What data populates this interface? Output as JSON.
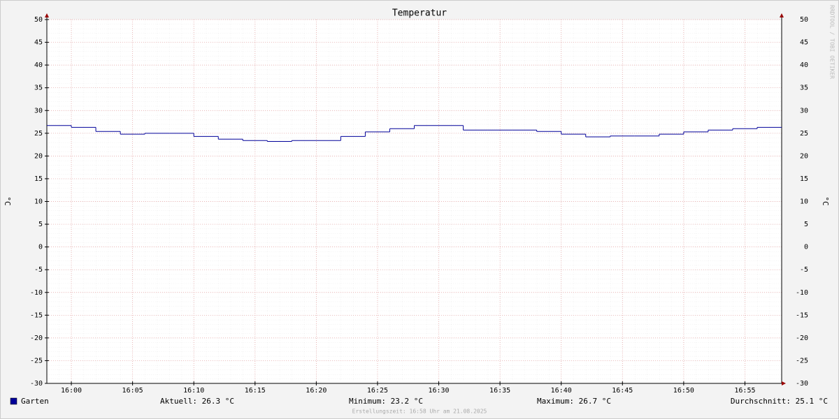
{
  "chart_data": {
    "type": "step",
    "title": "Temperatur",
    "y_label": "°C",
    "watermark": "RRDTOOL / TOBI OETIKER",
    "footer": "Erstellungszeit: 16:58 Uhr am 21.08.2025",
    "xlim": [
      "15:58",
      "16:58"
    ],
    "xticks": [
      "16:00",
      "16:05",
      "16:10",
      "16:15",
      "16:20",
      "16:25",
      "16:30",
      "16:35",
      "16:40",
      "16:45",
      "16:50",
      "16:55"
    ],
    "ylim": [
      -30,
      50
    ],
    "yticks": [
      -30,
      -25,
      -20,
      -15,
      -10,
      -5,
      0,
      5,
      10,
      15,
      20,
      25,
      30,
      35,
      40,
      45,
      50
    ],
    "grid": true,
    "x": [
      "15:58",
      "16:00",
      "16:02",
      "16:04",
      "16:06",
      "16:08",
      "16:10",
      "16:12",
      "16:14",
      "16:16",
      "16:18",
      "16:20",
      "16:22",
      "16:24",
      "16:26",
      "16:28",
      "16:30",
      "16:32",
      "16:34",
      "16:36",
      "16:38",
      "16:40",
      "16:42",
      "16:44",
      "16:46",
      "16:48",
      "16:50",
      "16:52",
      "16:54",
      "16:56"
    ],
    "series": [
      {
        "name": "Garten",
        "color": "#000099",
        "values": [
          26.7,
          26.3,
          25.4,
          24.8,
          25.0,
          25.0,
          24.3,
          23.7,
          23.4,
          23.2,
          23.4,
          23.4,
          24.3,
          25.3,
          26.0,
          26.7,
          26.7,
          25.7,
          25.7,
          25.7,
          25.4,
          24.8,
          24.2,
          24.4,
          24.4,
          24.8,
          25.3,
          25.7,
          26.0,
          26.3
        ]
      }
    ],
    "stats": [
      {
        "name": "Aktuell:",
        "value": 26.3,
        "value_label": "26.3 °C"
      },
      {
        "name": "Minimum:",
        "value": 23.2,
        "value_label": "23.2 °C"
      },
      {
        "name": "Maximum:",
        "value": 26.7,
        "value_label": "26.7 °C"
      },
      {
        "name": "Durchschnitt:",
        "value": 25.1,
        "value_label": "25.1 °C"
      }
    ]
  }
}
